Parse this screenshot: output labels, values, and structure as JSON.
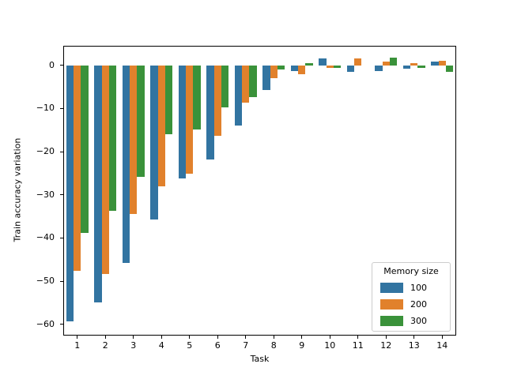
{
  "chart_data": {
    "type": "bar",
    "title": "",
    "xlabel": "Task",
    "ylabel": "Train accuracy variation",
    "categories": [
      "1",
      "2",
      "3",
      "4",
      "5",
      "6",
      "7",
      "8",
      "9",
      "10",
      "11",
      "12",
      "13",
      "14"
    ],
    "series": [
      {
        "name": "100",
        "color": "#3274a1",
        "values": [
          -59.3,
          -54.9,
          -45.7,
          -35.8,
          -26.3,
          -21.8,
          -13.9,
          -5.8,
          -1.4,
          1.5,
          -1.5,
          -1.3,
          -0.8,
          0.8
        ]
      },
      {
        "name": "200",
        "color": "#e1812c",
        "values": [
          -47.6,
          -48.3,
          -34.5,
          -28.1,
          -25.1,
          -16.3,
          -8.6,
          -3.0,
          -2.1,
          -0.7,
          1.5,
          0.9,
          0.4,
          1.1
        ]
      },
      {
        "name": "300",
        "color": "#3a923a",
        "values": [
          -38.8,
          -33.7,
          -25.8,
          -15.9,
          -14.9,
          -9.7,
          -7.4,
          -1.0,
          0.4,
          -0.7,
          0.0,
          1.8,
          -0.6,
          -1.5
        ]
      }
    ],
    "ylim": [
      -62.6,
      4.5
    ],
    "yticks": [
      0,
      -10,
      -20,
      -30,
      -40,
      -50,
      -60
    ],
    "grid": false,
    "legend": {
      "title": "Memory size",
      "position": "lower right"
    }
  }
}
